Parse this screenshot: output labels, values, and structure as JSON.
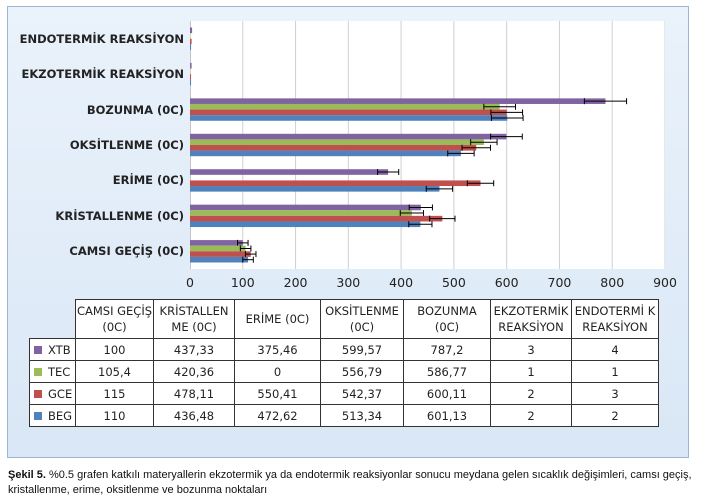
{
  "chart_data": {
    "type": "bar",
    "orientation": "horizontal",
    "categories": [
      "CAMSI GEÇİŞ",
      "KRİSTALLENME (0C)",
      "ERİME (0C)",
      "OKSİTLENME (0C)",
      "BOZUNMA (0C)",
      "EKZOTERMİK REAKSİYON",
      "ENDOTERMİK REAKSİYON"
    ],
    "axis_labels": [
      "CAMSI GEÇİŞ (0C)",
      "KRİSTALLENME (0C)",
      "ERİME (0C)",
      "OKSİTLENME (0C)",
      "BOZUNMA (0C)",
      "EKZOTERMİK REAKSİYON",
      "ENDOTERMİK REAKSİYON"
    ],
    "table_headers": [
      "CAMSI GEÇİŞ (0C)",
      "KRİSTALLEN ME (0C)",
      "ERİME (0C)",
      "OKSİTLENME (0C)",
      "BOZUNMA (0C)",
      "EKZOTERMİK REAKSİYON",
      "ENDOTERMİ K REAKSİYON"
    ],
    "table_cells": [
      [
        "100",
        "437,33",
        "375,46",
        "599,57",
        "787,2",
        "3",
        "4"
      ],
      [
        "105,4",
        "420,36",
        "0",
        "556,79",
        "586,77",
        "1",
        "1"
      ],
      [
        "115",
        "478,11",
        "550,41",
        "542,37",
        "600,11",
        "2",
        "3"
      ],
      [
        "110",
        "436,48",
        "472,62",
        "513,34",
        "601,13",
        "2",
        "2"
      ]
    ],
    "series": [
      {
        "name": "XTB",
        "color": "#8064a2",
        "values": [
          100,
          437.33,
          375.46,
          599.57,
          787.2,
          3,
          4
        ],
        "errors": [
          10,
          22,
          20,
          30,
          40,
          0,
          0
        ]
      },
      {
        "name": "TEC",
        "color": "#9bbb59",
        "values": [
          105.4,
          420.36,
          0,
          556.79,
          586.77,
          1,
          1
        ],
        "errors": [
          10,
          22,
          0,
          25,
          30,
          0,
          0
        ]
      },
      {
        "name": "GCE",
        "color": "#c0504d",
        "values": [
          115,
          478.11,
          550.41,
          542.37,
          600.11,
          2,
          3
        ],
        "errors": [
          10,
          24,
          25,
          27,
          30,
          0,
          0
        ]
      },
      {
        "name": "BEG",
        "color": "#4f81bd",
        "values": [
          110,
          436.48,
          472.62,
          513.34,
          601.13,
          2,
          2
        ],
        "errors": [
          10,
          22,
          25,
          25,
          30,
          0,
          0
        ]
      }
    ],
    "xlim": [
      0,
      900
    ],
    "xticks": [
      "0",
      "100",
      "200",
      "300",
      "400",
      "500",
      "600",
      "700",
      "800",
      "900"
    ],
    "grid": true,
    "legend": "table"
  },
  "caption": {
    "label": "Şekil 5.",
    "text": " %0.5 grafen katkılı materyallerin ekzotermik ya da endotermik reaksiyonlar sonucu meydana gelen sıcaklık değişimleri, camsı geçiş, kristallenme, erime, oksitlenme ve bozunma noktaları"
  }
}
